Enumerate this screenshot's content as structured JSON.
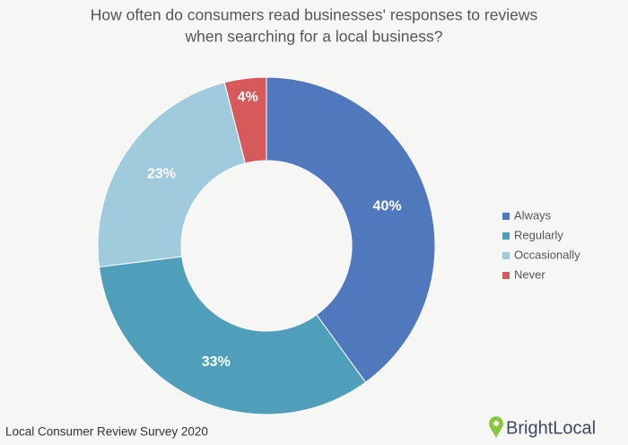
{
  "chart_data": {
    "type": "donut",
    "title": [
      "How often do consumers read businesses' responses to reviews",
      "when searching for a local business?"
    ],
    "categories": [
      "Always",
      "Regularly",
      "Occasionally",
      "Never"
    ],
    "values": [
      40,
      33,
      23,
      4
    ],
    "value_labels": [
      "40%",
      "33%",
      "23%",
      "4%"
    ],
    "colors": [
      "#5079bd",
      "#4f9fbb",
      "#9fcbdc",
      "#d65a5a"
    ],
    "legend": "right",
    "source": "Local Consumer Review Survey 2020",
    "brand": "BrightLocal"
  }
}
